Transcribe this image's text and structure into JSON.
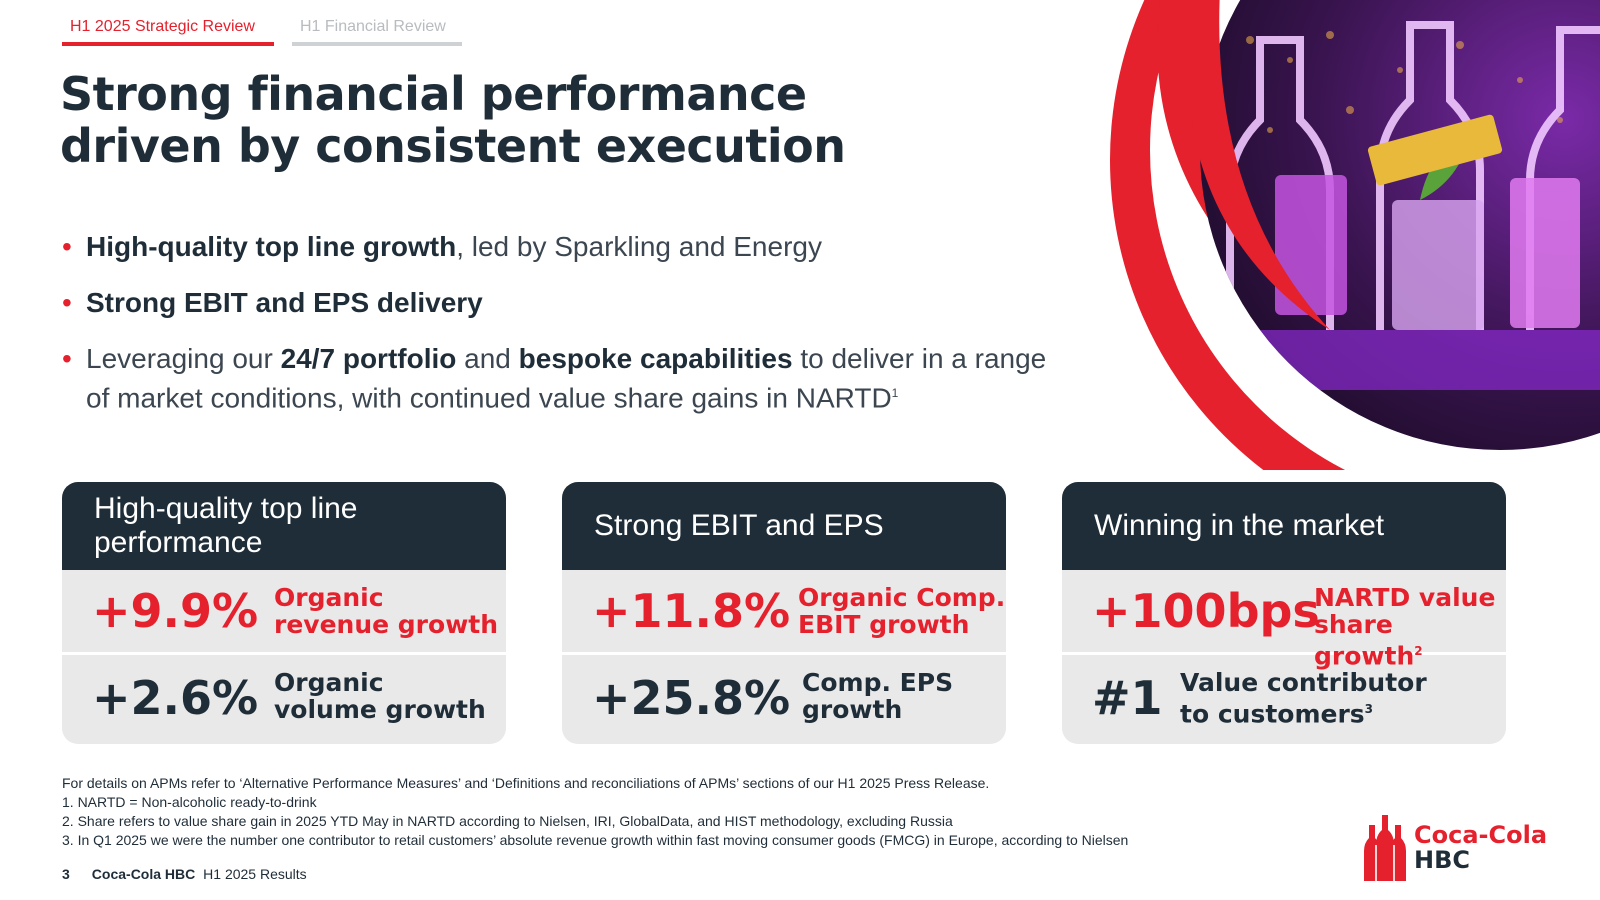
{
  "tabs": [
    {
      "label": "H1 2025 Strategic Review",
      "active": true
    },
    {
      "label": "H1 Financial Review",
      "active": false
    }
  ],
  "title": {
    "line1": "Strong financial performance",
    "line2": "driven by consistent execution"
  },
  "bullets": [
    {
      "bold1": "High-quality top line growth",
      "text1": ", led by Sparkling and Energy"
    },
    {
      "bold1": "Strong EBIT and EPS delivery"
    },
    {
      "text1": "Leveraging our ",
      "bold1": "24/7 portfolio",
      "text2": " and ",
      "bold2": "bespoke capabilities",
      "text3": " to deliver in a range of market conditions, with continued value share gains in NARTD",
      "sup": "1"
    }
  ],
  "cards": [
    {
      "header": "High-quality top line performance",
      "rows": [
        {
          "value": "+9.9%",
          "label_line1": "Organic",
          "label_line2": "revenue growth",
          "sup": ""
        },
        {
          "value": "+2.6%",
          "label_line1": "Organic",
          "label_line2": "volume growth",
          "sup": ""
        }
      ]
    },
    {
      "header": "Strong EBIT and EPS",
      "rows": [
        {
          "value": "+11.8%",
          "label_line1": "Organic Comp.",
          "label_line2": "EBIT growth",
          "sup": ""
        },
        {
          "value": "+25.8%",
          "label_line1": "Comp. EPS",
          "label_line2": "growth",
          "sup": ""
        }
      ]
    },
    {
      "header": "Winning in the market",
      "rows": [
        {
          "value": "+100bps",
          "label_line1": "NARTD value",
          "label_line2": "share growth",
          "sup": "2"
        },
        {
          "value": "#1",
          "label_line1": "Value contributor",
          "label_line2": "to customers",
          "sup": "3"
        }
      ]
    }
  ],
  "notes": [
    "For details on APMs refer to ‘Alternative Performance Measures’ and ‘Definitions and reconciliations of APMs’ sections of our H1 2025 Press Release.",
    "1.  NARTD = Non-alcoholic ready-to-drink",
    "2.  Share refers to value share gain in 2025 YTD May in NARTD according to Nielsen, IRI, GlobalData, and HIST methodology, excluding Russia",
    "3.  In Q1 2025 we were the number one contributor to retail customers’ absolute revenue growth within fast moving consumer goods (FMCG) in Europe, according to Nielsen"
  ],
  "footer": {
    "page": "3",
    "company": "Coca-Cola HBC",
    "report": "H1 2025 Results"
  },
  "logo": {
    "line1": "Coca-Cola",
    "line2": "HBC"
  },
  "colors": {
    "accent": "#e4212c",
    "dark": "#1f2d38",
    "card_bg": "#e9e9e9"
  }
}
